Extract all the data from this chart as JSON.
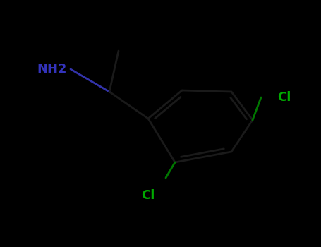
{
  "background_color": "#000000",
  "cc_bond_color": "#1a1a1a",
  "cn_bond_color": "#3333aa",
  "ccl_bond_color": "#007700",
  "nh2_color": "#3333bb",
  "cl_color": "#00aa00",
  "atom_bg_color": "#000000",
  "bond_width": 2.0,
  "figsize": [
    4.55,
    3.5
  ],
  "dpi": 100,
  "nh2_label": "NH2",
  "cl1_label": "Cl",
  "cl2_label": "Cl",
  "nh2_fontsize": 13,
  "cl_fontsize": 13
}
